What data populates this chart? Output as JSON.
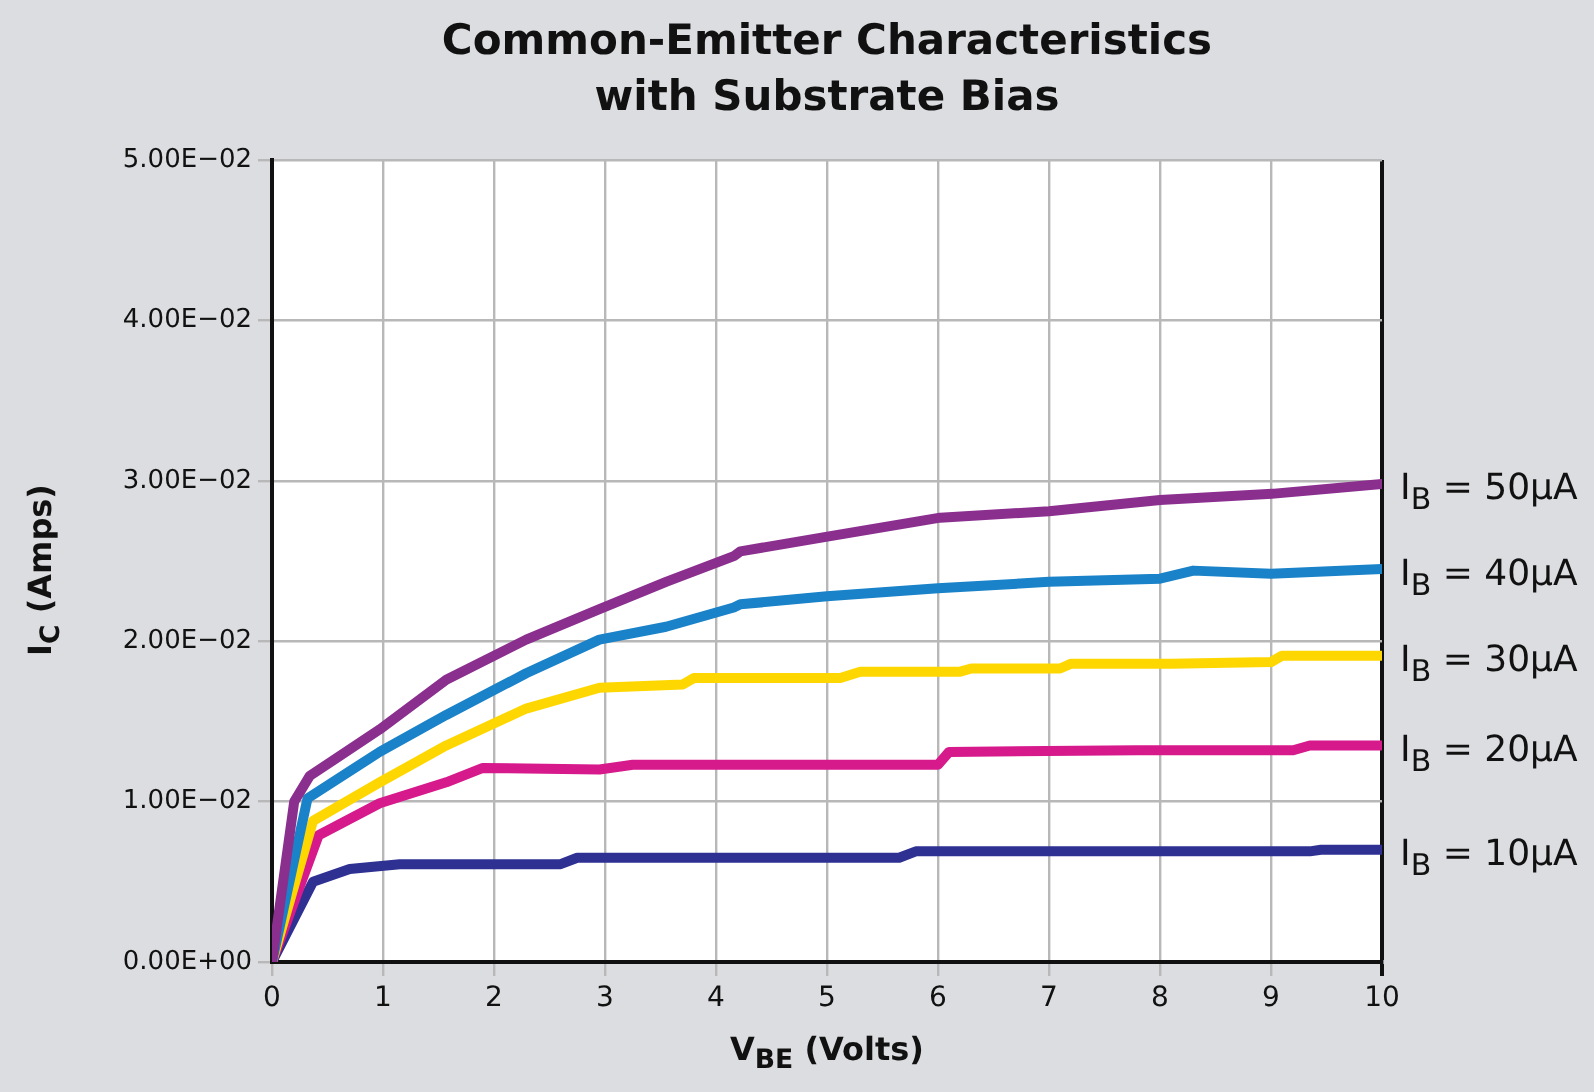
{
  "chart_data": {
    "type": "line",
    "title": "Common-Emitter Characteristics\nwith Substrate Bias",
    "xlabel": "V$_{BE}$ (Volts)",
    "ylabel": "I$_{C}$ (Amps)",
    "xlim": [
      0,
      10
    ],
    "xticks": [
      0,
      1,
      2,
      3,
      4,
      5,
      6,
      7,
      8,
      9,
      10
    ],
    "ylim": [
      0,
      0.05
    ],
    "yticks": [
      {
        "value": 0,
        "label": "0.00E+00"
      },
      {
        "value": 0.01,
        "label": "1.00E−02"
      },
      {
        "value": 0.02,
        "label": "2.00E−02"
      },
      {
        "value": 0.03,
        "label": "3.00E−02"
      },
      {
        "value": 0.04,
        "label": "4.00E−02"
      },
      {
        "value": 0.05,
        "label": "5.00E−02"
      }
    ],
    "grid": true,
    "legend": false,
    "marker": "none",
    "line_style": "solid",
    "series": [
      {
        "name": "I$_{B}$ = 50μA",
        "color": "#8b2f8f",
        "x": [
          0,
          0.2,
          0.34,
          0.97,
          1.57,
          2.29,
          2.95,
          3.55,
          4.16,
          4.22,
          4.99,
          6.02,
          7.0,
          8.0,
          9.03,
          10
        ],
        "values": [
          0,
          0.01,
          0.0116,
          0.0145,
          0.0176,
          0.0201,
          0.022,
          0.0237,
          0.0253,
          0.0256,
          0.0265,
          0.0277,
          0.0281,
          0.0288,
          0.0292,
          0.0298
        ]
      },
      {
        "name": "I$_{B}$ = 40μA",
        "color": "#1a82c8",
        "x": [
          0,
          0.32,
          0.97,
          1.57,
          2.29,
          2.95,
          3.55,
          4.16,
          4.22,
          5.0,
          6.0,
          7.0,
          8.0,
          8.3,
          9.0,
          10
        ],
        "values": [
          0,
          0.0102,
          0.0131,
          0.0154,
          0.018,
          0.0201,
          0.0209,
          0.0221,
          0.0223,
          0.0228,
          0.0233,
          0.0237,
          0.0239,
          0.0244,
          0.0242,
          0.0245
        ]
      },
      {
        "name": "I$_{B}$ = 30μA",
        "color": "#ffd700",
        "x": [
          0,
          0.37,
          0.97,
          1.57,
          2.29,
          2.95,
          3.7,
          3.8,
          5.12,
          5.3,
          6.2,
          6.3,
          7.1,
          7.2,
          8.1,
          9.0,
          9.1,
          10
        ],
        "values": [
          0,
          0.0088,
          0.0112,
          0.0135,
          0.0158,
          0.0171,
          0.0173,
          0.0177,
          0.0177,
          0.0181,
          0.0181,
          0.0183,
          0.0183,
          0.0186,
          0.0186,
          0.0187,
          0.0191,
          0.0191
        ]
      },
      {
        "name": "I$_{B}$ = 20μA",
        "color": "#d6198b",
        "x": [
          0,
          0.42,
          0.97,
          1.57,
          1.9,
          2.95,
          3.25,
          6.0,
          6.1,
          7.8,
          9.2,
          9.35,
          10
        ],
        "values": [
          0,
          0.0079,
          0.0099,
          0.0112,
          0.0121,
          0.012,
          0.0123,
          0.0123,
          0.0131,
          0.0132,
          0.0132,
          0.0135,
          0.0135
        ]
      },
      {
        "name": "I$_{B}$ = 10μA",
        "color": "#2e3192",
        "x": [
          0,
          0.37,
          0.7,
          1.15,
          2.6,
          2.75,
          5.65,
          5.8,
          9.35,
          9.45,
          10
        ],
        "values": [
          0,
          0.005,
          0.0058,
          0.0061,
          0.0061,
          0.0065,
          0.0065,
          0.0069,
          0.0069,
          0.007,
          0.007
        ]
      }
    ]
  }
}
